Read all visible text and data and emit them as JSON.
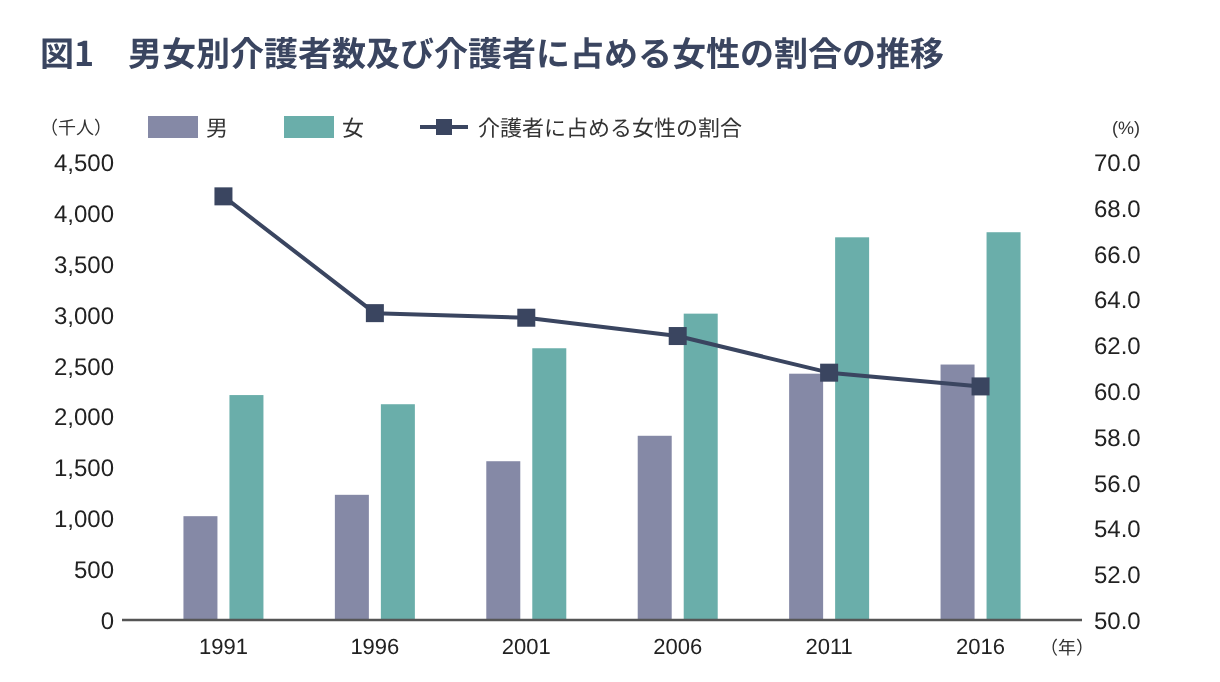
{
  "chart_data": {
    "type": "bar",
    "title": "図1　男女別介護者数及び介護者に占める女性の割合の推移",
    "xlabel": "（年）",
    "ylabel": "（千人）",
    "y2label": "(%)",
    "categories": [
      "1991",
      "1996",
      "2001",
      "2006",
      "2011",
      "2016"
    ],
    "series": [
      {
        "name": "男",
        "color": "#8589a6",
        "values": [
          1020,
          1230,
          1560,
          1810,
          2420,
          2510
        ]
      },
      {
        "name": "女",
        "color": "#6aaeaa",
        "values": [
          2210,
          2120,
          2670,
          3010,
          3760,
          3810
        ]
      },
      {
        "name": "介護者に占める女性の割合",
        "type": "line",
        "axis": "y2",
        "color": "#3a4560",
        "marker": "square",
        "values": [
          68.5,
          63.4,
          63.2,
          62.4,
          60.8,
          60.2
        ]
      }
    ],
    "ylim": [
      0,
      4500
    ],
    "yticks": [
      {
        "value": 0,
        "label": "0"
      },
      {
        "value": 500,
        "label": "500"
      },
      {
        "value": 1000,
        "label": "1,000"
      },
      {
        "value": 1500,
        "label": "1,500"
      },
      {
        "value": 2000,
        "label": "2,000"
      },
      {
        "value": 2500,
        "label": "2,500"
      },
      {
        "value": 3000,
        "label": "3,000"
      },
      {
        "value": 3500,
        "label": "3,500"
      },
      {
        "value": 4000,
        "label": "4,000"
      },
      {
        "value": 4500,
        "label": "4,500"
      }
    ],
    "y2lim": [
      50,
      70
    ],
    "y2ticks": [
      {
        "value": 50,
        "label": "50.0"
      },
      {
        "value": 52,
        "label": "52.0"
      },
      {
        "value": 54,
        "label": "54.0"
      },
      {
        "value": 56,
        "label": "56.0"
      },
      {
        "value": 58,
        "label": "58.0"
      },
      {
        "value": 60,
        "label": "60.0"
      },
      {
        "value": 62,
        "label": "62.0"
      },
      {
        "value": 64,
        "label": "64.0"
      },
      {
        "value": 66,
        "label": "66.0"
      },
      {
        "value": 68,
        "label": "68.0"
      },
      {
        "value": 70,
        "label": "70.0"
      }
    ],
    "legend": "top",
    "grid": false
  }
}
